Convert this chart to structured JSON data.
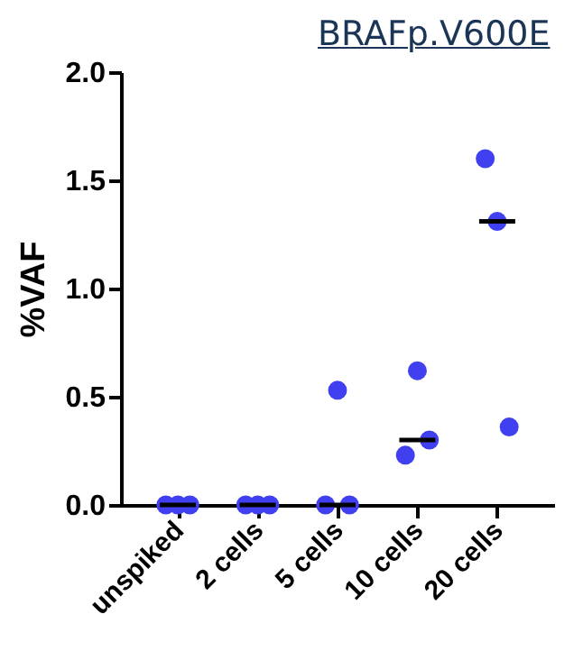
{
  "chart_data": {
    "type": "scatter",
    "title": "BRAFp.V600E",
    "ylabel": "%VAF",
    "categories": [
      "unspiked",
      "2 cells",
      "5 cells",
      "10 cells",
      "20 cells"
    ],
    "ylim": [
      0,
      2.0
    ],
    "yticks": [
      {
        "value": 0,
        "label": "0.0"
      },
      {
        "value": 0.5,
        "label": "0.5"
      },
      {
        "value": 1,
        "label": "1.0"
      },
      {
        "value": 1.5,
        "label": "1.5"
      },
      {
        "value": 2,
        "label": "2.0"
      }
    ],
    "grid": false,
    "marker": "circle",
    "series": [
      {
        "color": "#4040f0",
        "x": [
          "unspiked",
          "unspiked",
          "unspiked",
          "2 cells",
          "2 cells",
          "2 cells",
          "5 cells",
          "5 cells",
          "5 cells",
          "10 cells",
          "10 cells",
          "10 cells",
          "20 cells",
          "20 cells",
          "20 cells"
        ],
        "values": [
          0,
          0,
          0,
          0,
          0,
          0,
          0,
          0.53,
          0,
          0.23,
          0.62,
          0.3,
          1.6,
          1.31,
          0.36
        ]
      },
      {
        "type": "box",
        "color": "#000000",
        "boxes": [
          {
            "low": 0,
            "q1": 0,
            "median": 0,
            "q3": 0,
            "high": 0
          },
          {
            "low": 0,
            "q1": 0,
            "median": 0,
            "q3": 0,
            "high": 0
          },
          {
            "low": 0,
            "q1": 0,
            "median": 0,
            "q3": 0,
            "high": 0
          },
          {
            "low": 0.3,
            "q1": 0.3,
            "median": 0.3,
            "q3": 0.3,
            "high": 0.3
          },
          {
            "low": 1.31,
            "q1": 1.31,
            "median": 1.31,
            "q3": 1.31,
            "high": 1.31
          }
        ]
      }
    ]
  }
}
